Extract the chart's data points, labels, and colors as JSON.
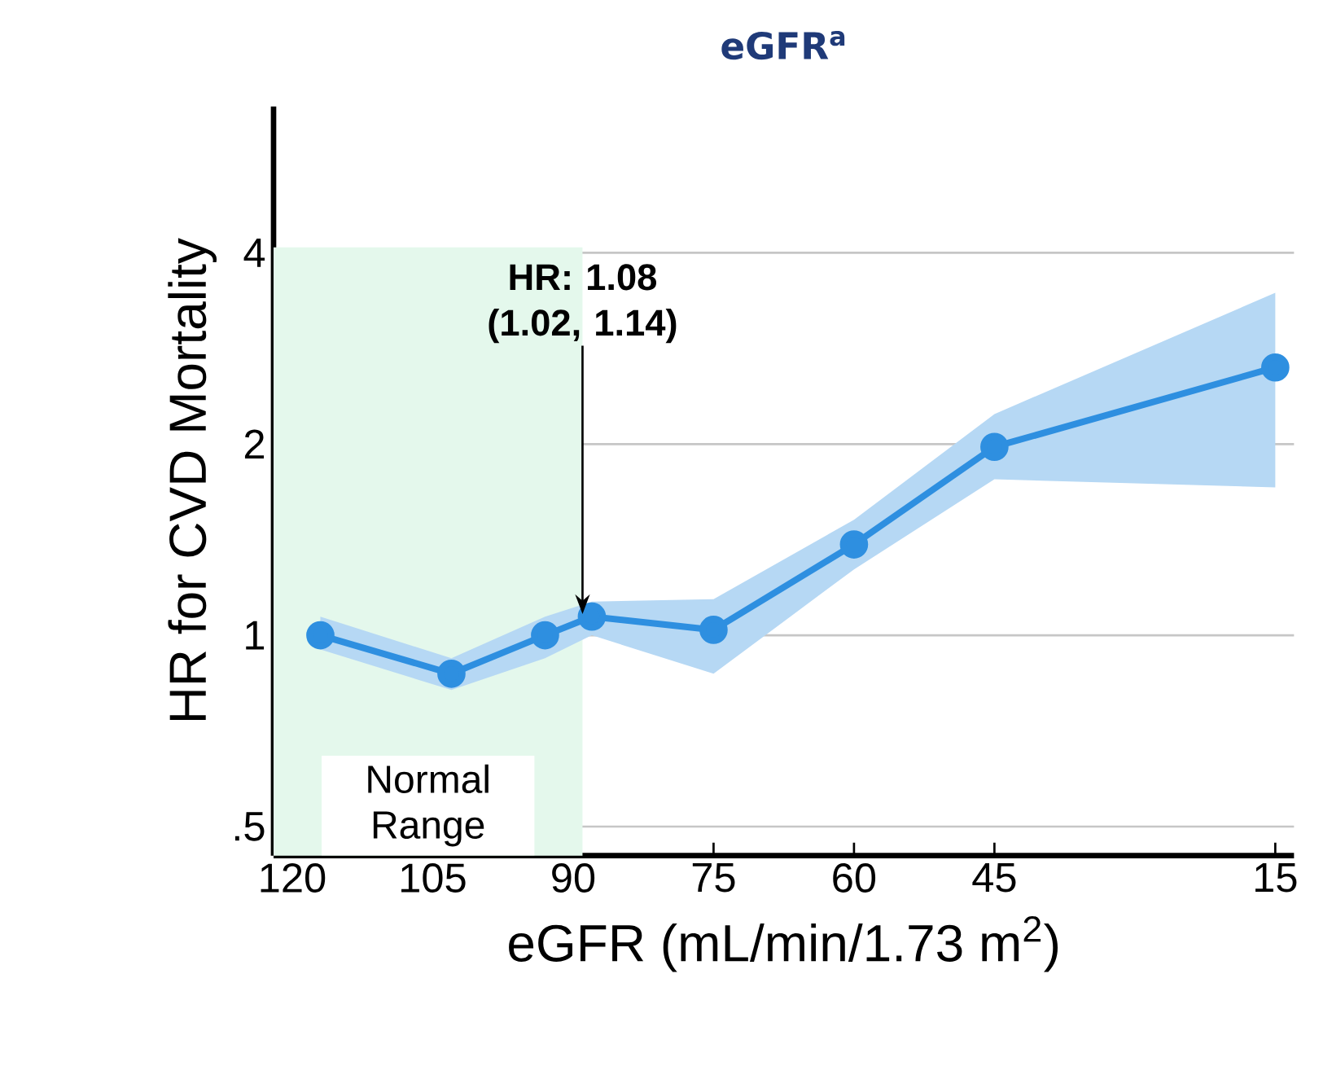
{
  "chart_data": {
    "type": "line",
    "title": "eGFR$^{a}$",
    "xlabel": "eGFR (mL/min/1.73 m$^{2}$)",
    "ylabel": "HR for CVD Mortality",
    "x": [
      117,
      103,
      93,
      88,
      75,
      60,
      45,
      15
    ],
    "series": [
      {
        "color": "#2e8fe0",
        "values": [
          1.0,
          0.87,
          1.0,
          1.07,
          1.02,
          1.39,
          1.98,
          2.64
        ],
        "lower": [
          0.95,
          0.82,
          0.92,
          1.0,
          0.87,
          1.27,
          1.76,
          1.71
        ],
        "upper": [
          1.07,
          0.92,
          1.07,
          1.13,
          1.14,
          1.52,
          2.23,
          3.46
        ]
      }
    ],
    "xlim": [
      122,
      13
    ],
    "xticks": [
      120,
      105,
      90,
      75,
      60,
      45,
      15
    ],
    "ylim": [
      0.45,
      6.8
    ],
    "yticks": [
      {
        "value": 0.5,
        "label": ".5"
      },
      1,
      2,
      4
    ],
    "log": "y",
    "grid": "y",
    "marker": "circle",
    "line_style": "solid",
    "bands": [
      {
        "axis": "x",
        "from": 122,
        "to": 89,
        "label": "Normal Range",
        "color": "#e4f8ec"
      }
    ],
    "annotations": [
      {
        "text": "HR: 1.08 (1.02, 1.14)",
        "x": 89,
        "y": 1.08
      }
    ]
  }
}
